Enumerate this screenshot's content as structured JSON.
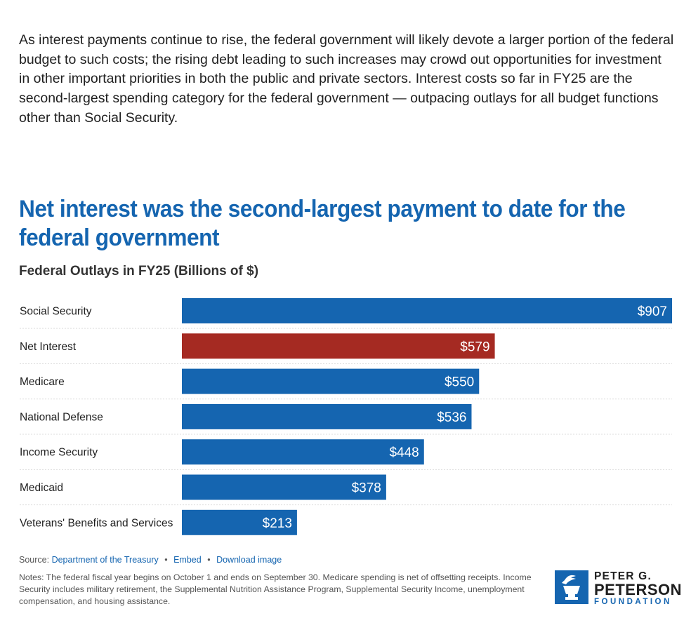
{
  "intro_paragraph": "As interest payments continue to rise, the federal government will likely devote a larger portion of the federal budget to such costs; the rising debt leading to such increases may crowd out opportunities for investment in other important priorities in both the public and private sectors. Interest costs so far in FY25 are the second-largest spending category for the federal government — outpacing outlays for all budget functions other than Social Security.",
  "chart_data": {
    "type": "bar",
    "orientation": "horizontal",
    "title": "Net interest was the second-largest payment to date for the federal government",
    "subtitle": "Federal Outlays in FY25 (Billions of $)",
    "categories": [
      "Social Security",
      "Net Interest",
      "Medicare",
      "National Defense",
      "Income Security",
      "Medicaid",
      "Veterans' Benefits and Services"
    ],
    "values": [
      907,
      579,
      550,
      536,
      448,
      378,
      213
    ],
    "value_labels": [
      "$907",
      "$579",
      "$550",
      "$536",
      "$448",
      "$378",
      "$213"
    ],
    "colors": [
      "#1565b0",
      "#a52a22",
      "#1565b0",
      "#1565b0",
      "#1565b0",
      "#1565b0",
      "#1565b0"
    ],
    "xlim": [
      0,
      907
    ],
    "grid": false,
    "legend": "none"
  },
  "source": {
    "prefix": "Source:",
    "link_text": "Department of the Treasury",
    "separator": "•",
    "embed_label": "Embed",
    "download_label": "Download image"
  },
  "notes": "Notes: The federal fiscal year begins on October 1 and ends on September 30. Medicare spending is net of offsetting receipts. Income Security includes military retirement, the Supplemental Nutrition Assistance Program, Supplemental Security Income, unemployment compensation, and housing assistance.",
  "logo": {
    "line1": "PETER G.",
    "line2": "PETERSON",
    "line3": "FOUNDATION",
    "icon": "torch-icon",
    "color": "#1565b0"
  }
}
